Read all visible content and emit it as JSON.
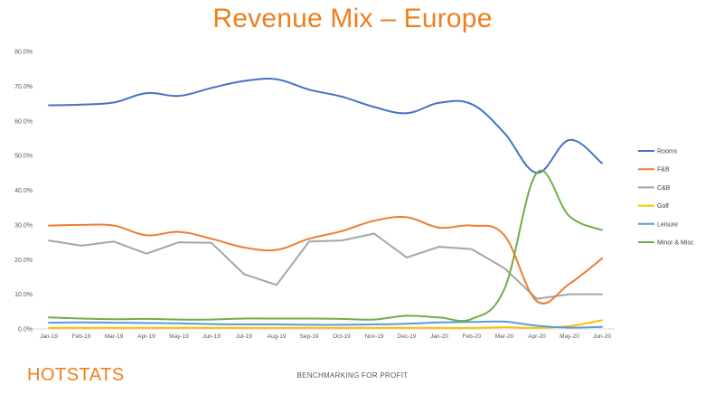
{
  "brand": {
    "logo_text": "HOTSTATS",
    "tagline": "BENCHMARKING FOR PROFIT"
  },
  "chart_data": {
    "type": "line",
    "title": "Revenue Mix – Europe",
    "xlabel": "",
    "ylabel": "",
    "ylim": [
      0,
      80
    ],
    "y_ticks": [
      "0.0%",
      "10.0%",
      "20.0%",
      "30.0%",
      "40.0%",
      "50.0%",
      "60.0%",
      "70.0%",
      "80.0%"
    ],
    "categories": [
      "Jan-19",
      "Feb-19",
      "Mar-19",
      "Apr-19",
      "May-19",
      "Jun-19",
      "Jul-19",
      "Aug-19",
      "Sep-19",
      "Oct-19",
      "Nov-19",
      "Dec-19",
      "Jan-20",
      "Feb-20",
      "Mar-20",
      "Apr-20",
      "May-20",
      "Jun-20"
    ],
    "grid": false,
    "legend_position": "right",
    "series": [
      {
        "name": "Rooms",
        "color": "#4472c4",
        "smooth": true,
        "values": [
          64.5,
          64.7,
          65.3,
          68.0,
          67.2,
          69.5,
          71.5,
          72.0,
          69.0,
          67.0,
          64.0,
          62.2,
          65.2,
          64.8,
          56.5,
          45.0,
          54.5,
          47.8
        ]
      },
      {
        "name": "F&B",
        "color": "#ed7d31",
        "smooth": true,
        "values": [
          29.8,
          30.0,
          29.8,
          27.0,
          28.0,
          26.0,
          23.5,
          22.8,
          26.0,
          28.2,
          31.2,
          32.2,
          29.2,
          29.8,
          27.0,
          8.0,
          13.0,
          20.3
        ]
      },
      {
        "name": "C&B",
        "color": "#a5a5a5",
        "smooth": false,
        "values": [
          25.5,
          24.0,
          25.2,
          21.7,
          25.0,
          24.8,
          15.8,
          12.7,
          25.2,
          25.5,
          27.5,
          20.6,
          23.7,
          23.0,
          17.5,
          8.7,
          10.0,
          10.0
        ]
      },
      {
        "name": "Golf",
        "color": "#ffc000",
        "smooth": true,
        "values": [
          0.3,
          0.3,
          0.3,
          0.3,
          0.3,
          0.3,
          0.3,
          0.3,
          0.3,
          0.3,
          0.3,
          0.3,
          0.3,
          0.3,
          0.5,
          0.3,
          0.8,
          2.5
        ]
      },
      {
        "name": "Leisure",
        "color": "#5b9bd5",
        "smooth": true,
        "values": [
          1.8,
          1.9,
          1.8,
          1.7,
          1.6,
          1.4,
          1.3,
          1.3,
          1.2,
          1.2,
          1.3,
          1.5,
          1.9,
          2.0,
          2.1,
          0.9,
          0.4,
          0.6
        ]
      },
      {
        "name": "Minor & Misc",
        "color": "#70ad47",
        "smooth": true,
        "values": [
          3.3,
          3.0,
          2.8,
          2.9,
          2.7,
          2.7,
          3.0,
          3.0,
          3.0,
          2.9,
          2.7,
          3.8,
          3.3,
          2.9,
          11.5,
          45.0,
          32.5,
          28.5
        ]
      }
    ]
  }
}
